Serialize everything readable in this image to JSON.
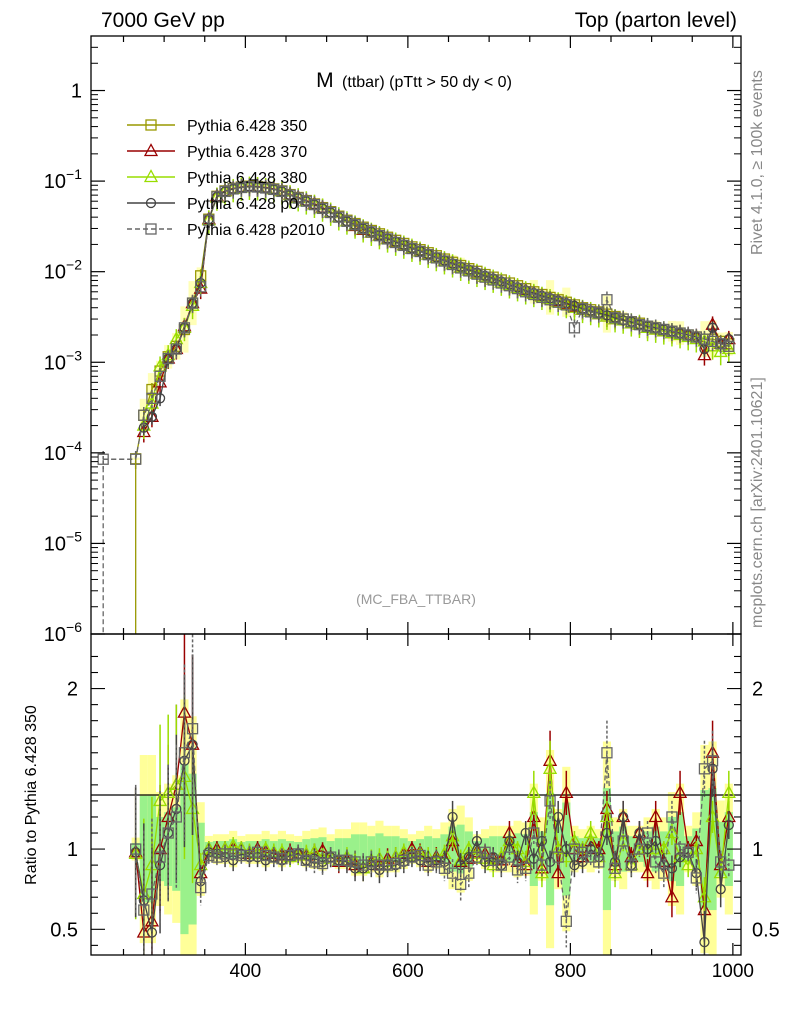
{
  "header": {
    "left": "7000 GeV pp",
    "right": "Top (parton level)"
  },
  "sidebar": {
    "upper": "Rivet 4.1.0, ≥ 100k events",
    "lower": "mcplots.cern.ch [arXiv:2401.10621]"
  },
  "plot": {
    "title_main": "M",
    "title_detail": "(ttbar) (pTtt > 50 dy < 0)",
    "analysis_tag": "(MC_FBA_TTBAR)"
  },
  "chart_data": [
    {
      "type": "line",
      "panel": "main",
      "yscale": "log",
      "xlim": [
        210,
        1010
      ],
      "ylim": [
        1e-06,
        4
      ],
      "grid": false,
      "legend_position": "top-left",
      "x_ticks": [
        400,
        600,
        800,
        1000
      ],
      "y_ticks": [
        {
          "value": 1,
          "label": "1",
          "exp": ""
        },
        {
          "value": 0.1,
          "label": "10",
          "exp": "−1"
        },
        {
          "value": 0.01,
          "label": "10",
          "exp": "−2"
        },
        {
          "value": 0.001,
          "label": "10",
          "exp": "−3"
        },
        {
          "value": 0.0001,
          "label": "10",
          "exp": "−4"
        },
        {
          "value": 1e-05,
          "label": "10",
          "exp": "−5"
        },
        {
          "value": 1e-06,
          "label": "10",
          "exp": "−6"
        }
      ],
      "x": [
        225,
        265,
        275,
        285,
        295,
        305,
        315,
        325,
        335,
        345,
        355,
        365,
        375,
        385,
        395,
        405,
        415,
        425,
        435,
        445,
        455,
        465,
        475,
        485,
        495,
        505,
        515,
        525,
        535,
        545,
        555,
        565,
        575,
        585,
        595,
        605,
        615,
        625,
        635,
        645,
        655,
        665,
        675,
        685,
        695,
        705,
        715,
        725,
        735,
        745,
        755,
        765,
        775,
        785,
        795,
        805,
        815,
        825,
        835,
        845,
        855,
        865,
        875,
        885,
        895,
        905,
        915,
        925,
        935,
        945,
        955,
        965,
        975,
        985,
        995
      ],
      "series": [
        {
          "name": "Pythia 6.428 350",
          "color": "#999900",
          "marker": "square",
          "dashed": false,
          "values": [
            null,
            8.6e-05,
            0.00026,
            0.0005,
            0.0008,
            0.00115,
            0.0015,
            0.0023,
            0.0045,
            0.009,
            0.038,
            0.068,
            0.078,
            0.083,
            0.086,
            0.088,
            0.087,
            0.085,
            0.082,
            0.078,
            0.071,
            0.066,
            0.061,
            0.056,
            0.051,
            0.046,
            0.041,
            0.037,
            0.034,
            0.031,
            0.0285,
            0.0262,
            0.024,
            0.0222,
            0.0205,
            0.0188,
            0.0175,
            0.0162,
            0.015,
            0.0138,
            0.0127,
            0.0117,
            0.0108,
            0.0101,
            0.0093,
            0.0087,
            0.0081,
            0.0075,
            0.007,
            0.0065,
            0.006,
            0.0056,
            0.0052,
            0.0049,
            0.0046,
            0.0043,
            0.004,
            0.0038,
            0.0036,
            0.0034,
            0.0032,
            0.003,
            0.0028,
            0.0027,
            0.0025,
            0.0024,
            0.0023,
            0.0022,
            0.0021,
            0.002,
            0.0019,
            0.0018,
            0.0018,
            0.0017,
            0.0016
          ]
        },
        {
          "name": "Pythia 6.428 370",
          "color": "#990000",
          "marker": "triangle",
          "dashed": false,
          "values": [
            null,
            null,
            0.00017,
            0.00025,
            0.0006,
            0.0011,
            0.0014,
            0.0025,
            0.0045,
            0.0065,
            0.038,
            0.068,
            0.078,
            0.083,
            0.086,
            0.088,
            0.087,
            0.085,
            0.082,
            0.078,
            0.071,
            0.066,
            0.061,
            0.056,
            0.051,
            0.045,
            0.04,
            0.036,
            0.032,
            0.029,
            0.027,
            0.025,
            0.023,
            0.0213,
            0.0197,
            0.018,
            0.0168,
            0.0155,
            0.0142,
            0.0131,
            0.0121,
            0.0111,
            0.0103,
            0.0096,
            0.0088,
            0.0082,
            0.0076,
            0.0071,
            0.0066,
            0.0062,
            0.0058,
            0.0054,
            0.005,
            0.0047,
            0.0044,
            0.0041,
            0.0038,
            0.0036,
            0.0034,
            0.0032,
            0.003,
            0.0029,
            0.0027,
            0.0026,
            0.0024,
            0.0023,
            0.0022,
            0.0021,
            0.0021,
            0.002,
            0.0019,
            0.0012,
            0.0026,
            0.0016,
            0.0018
          ]
        },
        {
          "name": "Pythia 6.428 380",
          "color": "#99dd00",
          "marker": "triangle",
          "dashed": false,
          "values": [
            null,
            null,
            0.0002,
            0.00035,
            0.0009,
            0.0012,
            0.0018,
            0.0024,
            0.0042,
            0.0075,
            0.037,
            0.066,
            0.077,
            0.082,
            0.085,
            0.087,
            0.086,
            0.084,
            0.081,
            0.077,
            0.07,
            0.065,
            0.06,
            0.055,
            0.05,
            0.045,
            0.04,
            0.036,
            0.0325,
            0.0295,
            0.027,
            0.0248,
            0.0228,
            0.021,
            0.0195,
            0.018,
            0.0167,
            0.0154,
            0.0142,
            0.0131,
            0.0121,
            0.0111,
            0.0103,
            0.0095,
            0.0088,
            0.0082,
            0.0076,
            0.0071,
            0.0066,
            0.0061,
            0.0057,
            0.0053,
            0.005,
            0.0046,
            0.0043,
            0.004,
            0.0038,
            0.0036,
            0.0034,
            0.0032,
            0.003,
            0.0029,
            0.0027,
            0.0026,
            0.0024,
            0.0023,
            0.0022,
            0.0021,
            0.002,
            0.0019,
            0.0018,
            0.0017,
            0.0015,
            0.0013,
            0.0014
          ]
        },
        {
          "name": "Pythia 6.428 p0",
          "color": "#444444",
          "marker": "circle",
          "dashed": false,
          "values": [
            null,
            null,
            0.00019,
            0.00025,
            0.0004,
            0.0011,
            0.0014,
            0.0024,
            0.0045,
            0.0075,
            0.038,
            0.067,
            0.077,
            0.082,
            0.085,
            0.087,
            0.086,
            0.084,
            0.081,
            0.077,
            0.07,
            0.065,
            0.06,
            0.055,
            0.05,
            0.045,
            0.04,
            0.036,
            0.033,
            0.03,
            0.0275,
            0.0252,
            0.0232,
            0.0214,
            0.0198,
            0.0182,
            0.0169,
            0.0156,
            0.0144,
            0.0133,
            0.0123,
            0.0113,
            0.0105,
            0.0098,
            0.009,
            0.0084,
            0.0078,
            0.0072,
            0.0067,
            0.0062,
            0.0058,
            0.0054,
            0.0051,
            0.0048,
            0.0045,
            0.0042,
            0.0039,
            0.0037,
            0.0035,
            0.0033,
            0.0031,
            0.0029,
            0.0028,
            0.0026,
            0.0025,
            0.0024,
            0.0023,
            0.0022,
            0.0021,
            0.002,
            0.0019,
            0.0014,
            0.0024,
            0.0016,
            0.0018
          ]
        },
        {
          "name": "Pythia 6.428 p2010",
          "color": "#666666",
          "marker": "square",
          "dashed": true,
          "values": [
            8.5e-05,
            8.5e-05,
            0.00026,
            0.0004,
            0.0007,
            0.0011,
            0.0014,
            0.0024,
            0.0045,
            0.0068,
            0.037,
            0.067,
            0.077,
            0.082,
            0.085,
            0.087,
            0.086,
            0.084,
            0.081,
            0.077,
            0.07,
            0.065,
            0.06,
            0.055,
            0.05,
            0.045,
            0.04,
            0.036,
            0.033,
            0.03,
            0.0275,
            0.025,
            0.023,
            0.021,
            0.0195,
            0.018,
            0.0167,
            0.0154,
            0.0142,
            0.0131,
            0.012,
            0.011,
            0.0102,
            0.0094,
            0.0087,
            0.0081,
            0.0075,
            0.007,
            0.0065,
            0.006,
            0.0056,
            0.0052,
            0.0049,
            0.0046,
            0.0043,
            0.0024,
            0.0039,
            0.0036,
            0.0035,
            0.0049,
            0.0031,
            0.003,
            0.0028,
            0.0026,
            0.0025,
            0.0024,
            0.0023,
            0.0022,
            0.0021,
            0.002,
            0.0019,
            0.0018,
            0.0017,
            0.0016,
            0.0015
          ]
        }
      ]
    },
    {
      "type": "line",
      "panel": "ratio",
      "ylabel": "Ratio to Pythia 6.428 350",
      "xlim": [
        210,
        1010
      ],
      "ylim": [
        0.34,
        2.34
      ],
      "x_ticks": [
        400,
        600,
        800,
        1000
      ],
      "y_ticks": [
        0.5,
        1,
        2
      ],
      "reference_line": 1,
      "x": [
        265,
        275,
        285,
        295,
        305,
        315,
        325,
        335,
        345,
        355,
        365,
        375,
        385,
        395,
        405,
        415,
        425,
        435,
        445,
        455,
        465,
        475,
        485,
        495,
        505,
        515,
        525,
        535,
        545,
        555,
        565,
        575,
        585,
        595,
        605,
        615,
        625,
        635,
        645,
        655,
        665,
        675,
        685,
        695,
        705,
        715,
        725,
        735,
        745,
        755,
        765,
        775,
        785,
        795,
        805,
        815,
        825,
        835,
        845,
        855,
        865,
        875,
        885,
        895,
        905,
        915,
        925,
        935,
        945,
        955,
        965,
        975,
        985,
        995
      ],
      "series": [
        {
          "name": "Pythia 6.428 370",
          "values": [
            0.98,
            0.48,
            0.55,
            1.0,
            1.2,
            1.4,
            1.85,
            1.65,
            0.85,
            1.0,
            1.0,
            1.0,
            1.0,
            1.0,
            0.97,
            1.0,
            0.98,
            0.97,
            0.96,
            0.98,
            0.97,
            0.96,
            0.98,
            0.99,
            0.95,
            0.92,
            0.93,
            0.9,
            0.88,
            0.92,
            0.9,
            0.94,
            0.95,
            0.97,
            1.0,
            0.98,
            0.92,
            0.95,
            0.94,
            1.05,
            0.92,
            0.94,
            0.98,
            0.97,
            0.94,
            0.93,
            1.1,
            0.92,
            0.9,
            1.2,
            0.88,
            1.55,
            0.85,
            1.35,
            1.0,
            0.95,
            1.05,
            1.0,
            1.25,
            0.9,
            1.2,
            0.95,
            1.1,
            0.85,
            1.2,
            0.92,
            0.7,
            1.35,
            1.0,
            1.05,
            0.62,
            1.6,
            0.9,
            1.2
          ]
        },
        {
          "name": "Pythia 6.428 380",
          "values": [
            0.97,
            0.72,
            0.9,
            1.3,
            1.35,
            1.4,
            1.45,
            1.25,
            0.9,
            1.0,
            0.98,
            1.0,
            1.02,
            1.0,
            0.98,
            0.97,
            1.0,
            0.98,
            0.98,
            0.95,
            0.96,
            0.97,
            0.98,
            0.94,
            0.95,
            0.93,
            0.95,
            0.92,
            0.88,
            0.93,
            0.94,
            0.92,
            0.95,
            0.98,
            0.96,
            0.97,
            0.95,
            0.94,
            0.97,
            1.08,
            0.93,
            1.0,
            0.97,
            0.94,
            0.9,
            0.95,
            1.05,
            1.0,
            0.92,
            1.35,
            0.85,
            1.5,
            1.0,
            0.95,
            1.05,
            1.0,
            1.1,
            0.95,
            1.2,
            0.85,
            1.05,
            0.9,
            1.0,
            1.0,
            1.0,
            1.0,
            1.1,
            0.95,
            0.9,
            1.0,
            0.7,
            1.2,
            0.85,
            1.35
          ]
        },
        {
          "name": "Pythia 6.428 p0",
          "values": [
            0.98,
            0.68,
            0.48,
            0.9,
            1.1,
            1.25,
            1.55,
            1.65,
            0.8,
            0.98,
            0.97,
            0.95,
            0.93,
            0.97,
            0.95,
            0.95,
            0.93,
            0.95,
            0.93,
            0.96,
            0.97,
            0.93,
            0.94,
            0.92,
            0.95,
            0.93,
            0.92,
            0.88,
            0.88,
            0.9,
            0.87,
            0.9,
            0.9,
            0.92,
            0.95,
            0.93,
            0.92,
            0.93,
            0.92,
            1.2,
            0.9,
            0.95,
            1.05,
            0.92,
            0.95,
            0.9,
            1.05,
            0.92,
            1.1,
            0.94,
            1.05,
            0.92,
            1.2,
            1.0,
            0.9,
            0.92,
            1.0,
            0.95,
            1.1,
            0.92,
            1.2,
            0.9,
            1.1,
            1.0,
            1.05,
            0.9,
            0.88,
            0.95,
            0.98,
            0.85,
            0.42,
            1.5,
            0.75,
            1.15
          ]
        },
        {
          "name": "Pythia 6.428 p2010",
          "values": [
            1.0,
            0.62,
            0.72,
            0.95,
            1.1,
            1.2,
            1.6,
            1.75,
            0.76,
            0.96,
            0.95,
            0.97,
            0.97,
            0.96,
            0.96,
            0.98,
            0.96,
            0.95,
            0.94,
            0.96,
            0.97,
            0.93,
            0.92,
            0.91,
            0.95,
            0.93,
            0.93,
            0.92,
            0.9,
            0.92,
            0.9,
            0.9,
            0.91,
            0.93,
            0.95,
            0.96,
            0.9,
            0.92,
            0.88,
            0.85,
            0.78,
            0.85,
            0.95,
            0.98,
            0.93,
            0.9,
            0.95,
            0.87,
            0.88,
            1.1,
            0.9,
            1.3,
            0.95,
            0.55,
            1.0,
            0.98,
            0.95,
            0.92,
            1.6,
            0.88,
            1.05,
            0.9,
            1.0,
            1.1,
            0.92,
            0.85,
            1.2,
            1.0,
            0.98,
            0.82,
            1.5,
            1.55,
            0.92,
            0.9
          ]
        }
      ]
    }
  ]
}
